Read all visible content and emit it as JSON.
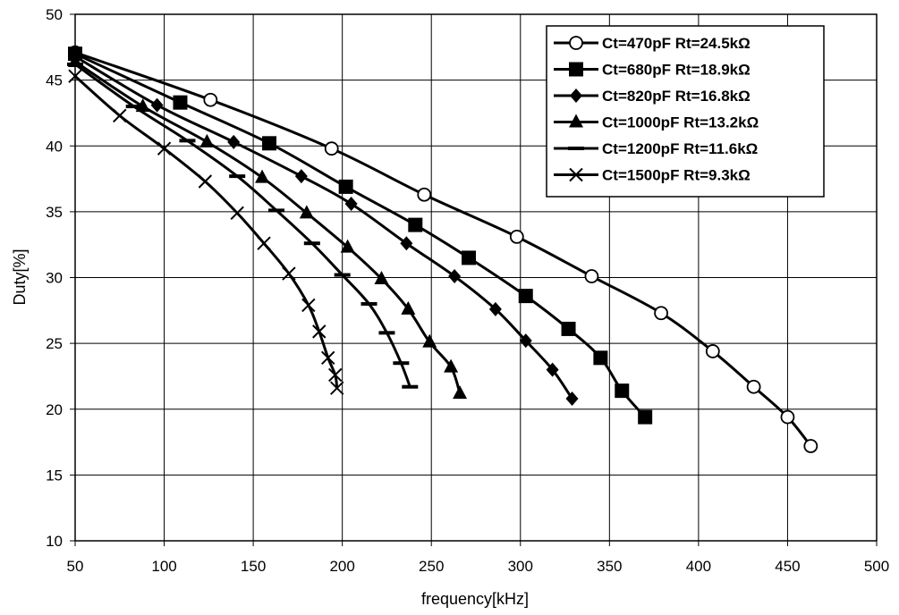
{
  "chart_data": {
    "type": "line",
    "title": "",
    "xlabel": "frequency[kHz]",
    "ylabel": "Duty[%]",
    "xlim": [
      50,
      500
    ],
    "ylim": [
      10,
      50
    ],
    "x_ticks": [
      "50",
      "100",
      "150",
      "200",
      "250",
      "300",
      "350",
      "400",
      "450",
      "500"
    ],
    "y_ticks": [
      "10",
      "15",
      "20",
      "25",
      "30",
      "35",
      "40",
      "45",
      "50"
    ],
    "grid": true,
    "legend_position": "top-right",
    "series": [
      {
        "name": "Ct=470pF Rt=24.5kΩ",
        "marker": "open-circle",
        "color": "#000000",
        "x": [
          50,
          126,
          194,
          246,
          298,
          340,
          379,
          408,
          431,
          450,
          463
        ],
        "y": [
          47.1,
          43.5,
          39.8,
          36.3,
          33.1,
          30.1,
          27.3,
          24.4,
          21.7,
          19.4,
          17.2
        ]
      },
      {
        "name": "Ct=680pF Rt=18.9kΩ",
        "marker": "square",
        "color": "#000000",
        "x": [
          50,
          109,
          159,
          202,
          241,
          271,
          303,
          327,
          345,
          357,
          370
        ],
        "y": [
          47.0,
          43.3,
          40.2,
          36.9,
          34.0,
          31.5,
          28.6,
          26.1,
          23.9,
          21.4,
          19.4
        ]
      },
      {
        "name": "Ct=820pF Rt=16.8kΩ",
        "marker": "diamond",
        "color": "#000000",
        "x": [
          50,
          96,
          139,
          177,
          205,
          236,
          263,
          286,
          303,
          318,
          329
        ],
        "y": [
          46.8,
          43.1,
          40.3,
          37.7,
          35.6,
          32.6,
          30.1,
          27.6,
          25.2,
          23.0,
          20.8
        ]
      },
      {
        "name": "Ct=1000pF Rt=13.2kΩ",
        "marker": "triangle",
        "color": "#000000",
        "x": [
          50,
          88,
          124,
          155,
          180,
          203,
          222,
          237,
          249,
          261,
          266
        ],
        "y": [
          46.4,
          43.0,
          40.3,
          37.6,
          34.9,
          32.3,
          29.9,
          27.6,
          25.1,
          23.2,
          21.2
        ]
      },
      {
        "name": "Ct=1200pF Rt=11.6kΩ",
        "marker": "dash",
        "color": "#000000",
        "x": [
          50,
          83,
          113,
          141,
          163,
          183,
          200,
          215,
          225,
          233,
          238
        ],
        "y": [
          46.2,
          43.0,
          40.4,
          37.7,
          35.1,
          32.6,
          30.2,
          28.0,
          25.8,
          23.5,
          21.7
        ]
      },
      {
        "name": "Ct=1500pF Rt=9.3kΩ",
        "marker": "x",
        "color": "#000000",
        "x": [
          50,
          75,
          100,
          123,
          141,
          156,
          170,
          181,
          187,
          192,
          196,
          197
        ],
        "y": [
          45.3,
          42.3,
          39.8,
          37.3,
          34.9,
          32.6,
          30.3,
          27.9,
          25.9,
          23.9,
          22.6,
          21.6
        ]
      }
    ]
  }
}
